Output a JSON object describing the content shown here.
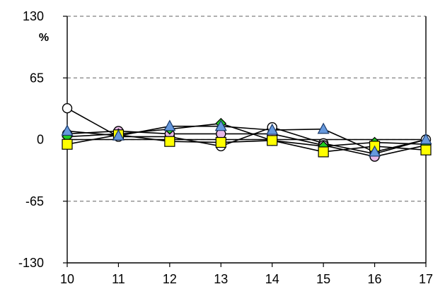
{
  "chart_data": {
    "type": "line",
    "title": "",
    "xlabel": "",
    "ylabel": "%",
    "x": [
      10,
      11,
      12,
      13,
      14,
      15,
      16,
      17
    ],
    "x_ticks": [
      "10",
      "11",
      "12",
      "13",
      "14",
      "15",
      "16",
      "17"
    ],
    "ylim": [
      -130,
      130
    ],
    "y_ticks": [
      {
        "value": 130,
        "label": "130",
        "color": "#000000"
      },
      {
        "value": 65,
        "label": "65",
        "color": "#000000"
      },
      {
        "value": 0,
        "label": "0",
        "color": "#000000"
      },
      {
        "value": -65,
        "label": "-65",
        "color": "#FF0000"
      },
      {
        "value": -130,
        "label": "-130",
        "color": "#FF0000"
      }
    ],
    "grid": true,
    "legend": "none",
    "series": [
      {
        "marker": "circle",
        "color": "#FFFFFF",
        "values": [
          33,
          3,
          3,
          -7,
          13,
          -4,
          -15,
          0
        ]
      },
      {
        "marker": "circle",
        "color": "#E8B8E8",
        "values": [
          6,
          9,
          6,
          6,
          6,
          -6,
          -18,
          -6
        ]
      },
      {
        "marker": "diamond",
        "color": "#22CC22",
        "values": [
          3,
          6,
          11,
          17,
          -1,
          -7,
          -3,
          -5
        ]
      },
      {
        "marker": "square",
        "color": "#FFFF00",
        "values": [
          -5,
          5,
          -2,
          -3,
          -1,
          -13,
          -7,
          -11
        ]
      },
      {
        "marker": "triangle",
        "color": "#6699DD",
        "values": [
          9,
          4,
          14,
          14,
          10,
          11,
          -13,
          0
        ]
      }
    ]
  }
}
